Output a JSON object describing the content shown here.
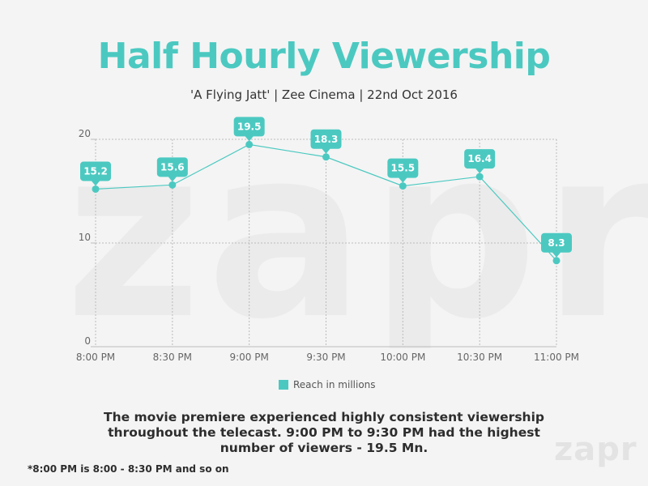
{
  "title": "Half Hourly Viewership",
  "subtitle": "'A Flying Jatt' | Zee Cinema |  22nd Oct 2016",
  "watermark": "zapr",
  "logo_text": "zapr",
  "legend_label": "Reach in millions",
  "insight": "The movie premiere experienced highly consistent viewership throughout the telecast. 9:00 PM to 9:30 PM had the highest number of viewers - 19.5 Mn.",
  "footnote": "*8:00 PM is 8:00 - 8:30 PM and so on",
  "colors": {
    "accent": "#4bc9c1",
    "grid": "#bbbbbb",
    "axis_text": "#666666"
  },
  "chart_data": {
    "type": "line",
    "title": "Half Hourly Viewership",
    "categories": [
      "8:00 PM",
      "8:30 PM",
      "9:00 PM",
      "9:30 PM",
      "10:00 PM",
      "10:30 PM",
      "11:00 PM"
    ],
    "series": [
      {
        "name": "Reach in millions",
        "values": [
          15.2,
          15.6,
          19.5,
          18.3,
          15.5,
          16.4,
          8.3
        ]
      }
    ],
    "yticks": [
      0,
      10,
      20
    ],
    "ylim": [
      0,
      20
    ],
    "grid": true,
    "legend": "bottom-center"
  }
}
